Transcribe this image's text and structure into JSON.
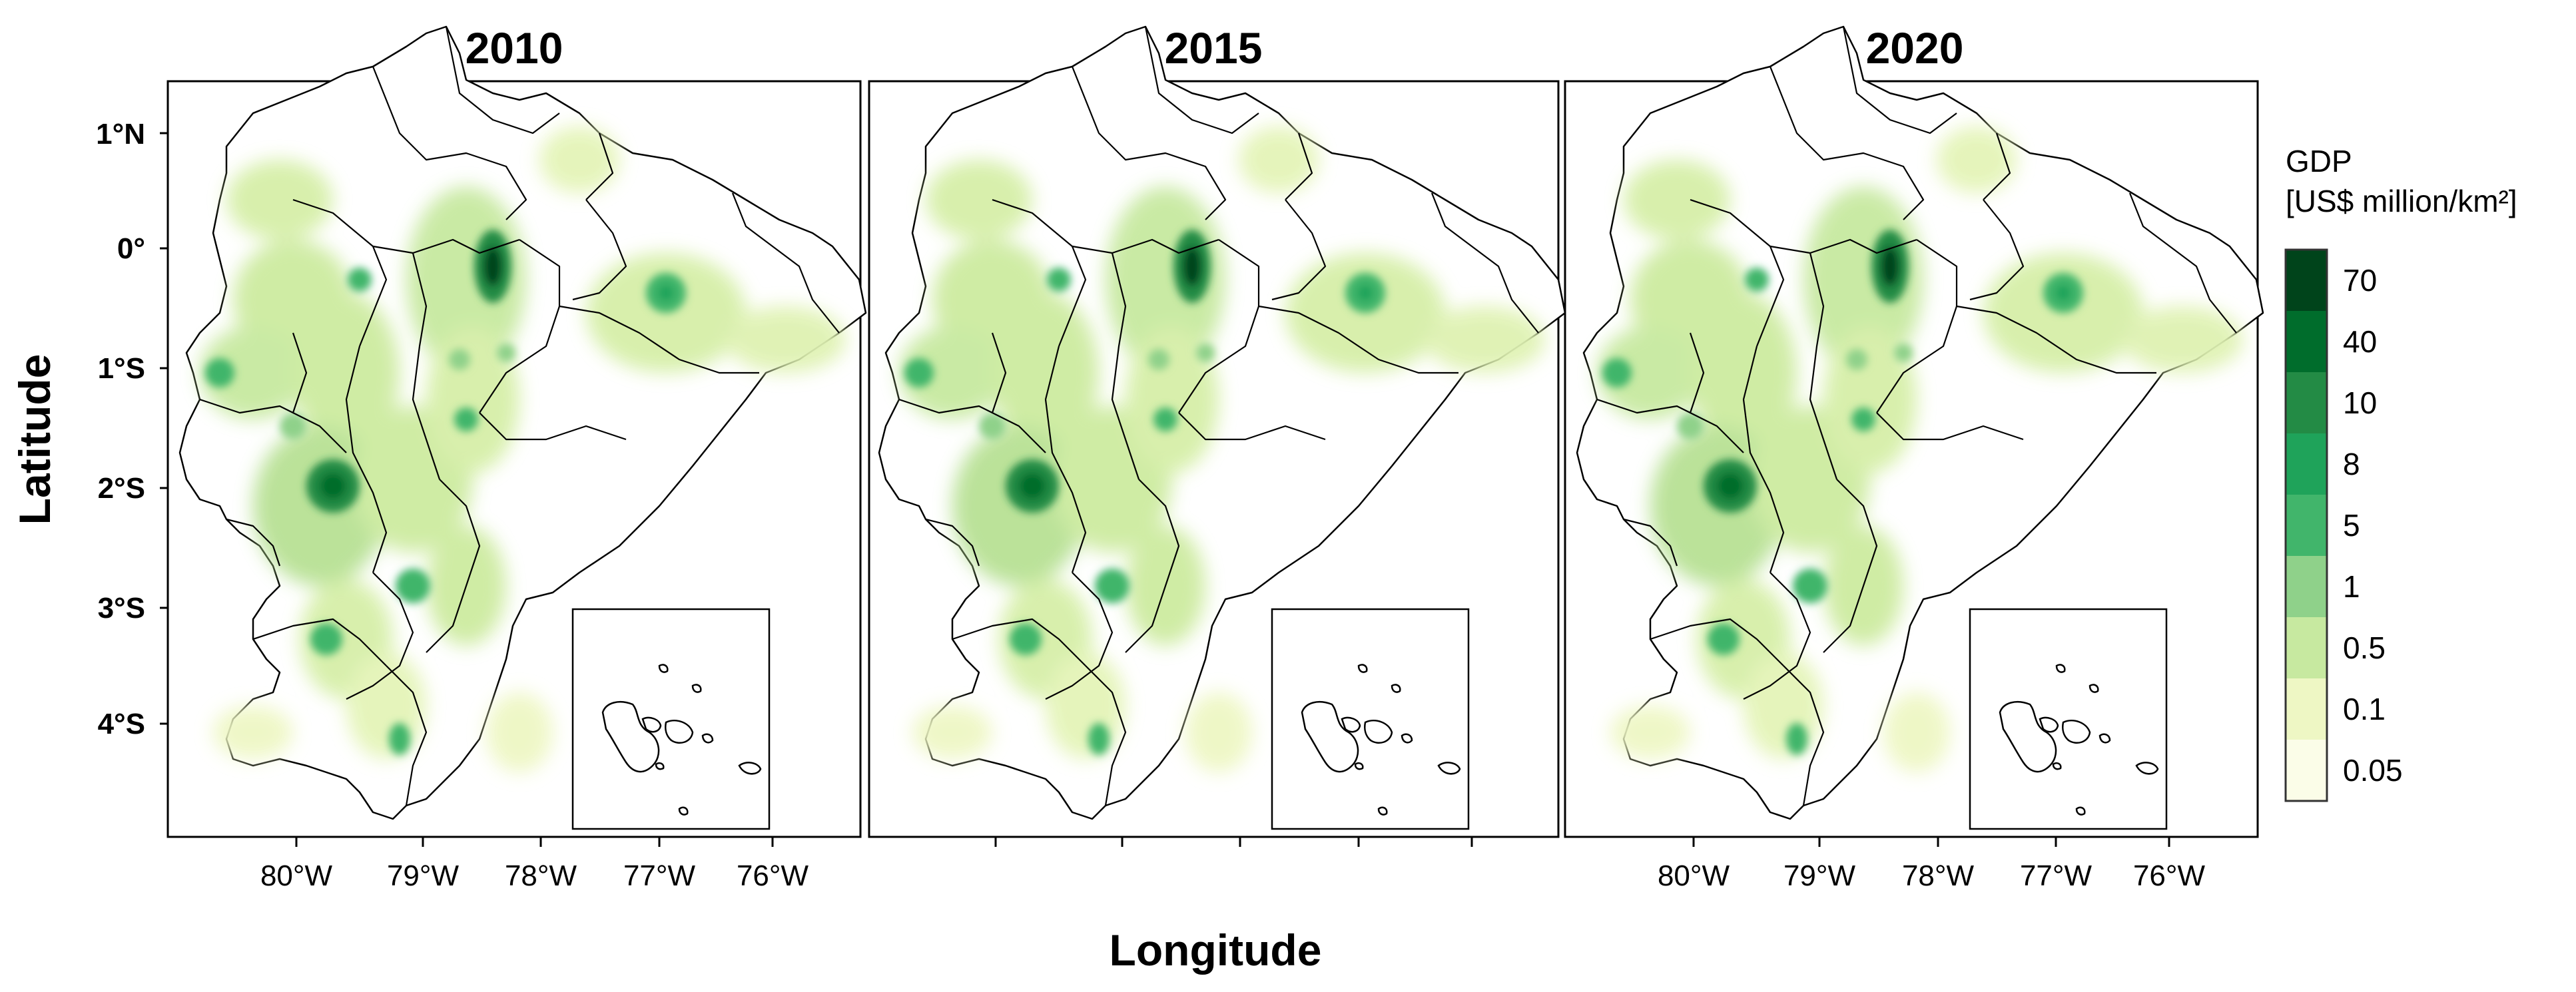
{
  "figure": {
    "xlabel": "Longitude",
    "ylabel": "Latitude",
    "panels": [
      {
        "title": "2010",
        "show_lon_ticks": true
      },
      {
        "title": "2015",
        "show_lon_ticks": false
      },
      {
        "title": "2020",
        "show_lon_ticks": true
      }
    ],
    "lon_ticks": [
      "80°W",
      "79°W",
      "78°W",
      "77°W",
      "76°W"
    ],
    "lat_ticks": [
      "1°N",
      "0°",
      "1°S",
      "2°S",
      "3°S",
      "4°S"
    ]
  },
  "legend": {
    "title_line1": "GDP",
    "title_line2": "[US$ million/km²]",
    "classes": [
      {
        "label": "70",
        "color": "#00441b"
      },
      {
        "label": "40",
        "color": "#006d2c"
      },
      {
        "label": "10",
        "color": "#238b45"
      },
      {
        "label": "8",
        "color": "#1fa35a"
      },
      {
        "label": "5",
        "color": "#41b56b"
      },
      {
        "label": "1",
        "color": "#8fd18a"
      },
      {
        "label": "0.5",
        "color": "#c7e9a0"
      },
      {
        "label": "0.1",
        "color": "#eef7c4"
      },
      {
        "label": "0.05",
        "color": "#fbfde8"
      }
    ]
  },
  "colors": {
    "gdp_low": "#eef7c4",
    "gdp_mid": "#8fd18a",
    "gdp_high": "#00441b"
  }
}
